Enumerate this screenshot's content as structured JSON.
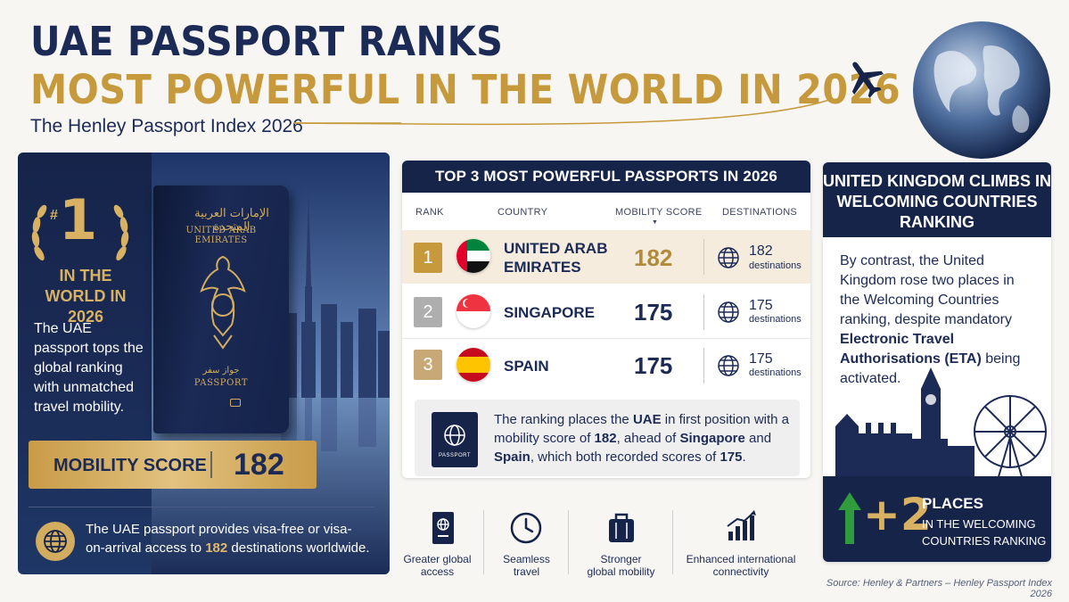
{
  "header": {
    "title_line1": "UAE PASSPORT RANKS",
    "title_line2": "MOST POWERFUL IN THE WORLD IN 2026",
    "subtitle": "The Henley Passport Index 2026"
  },
  "left": {
    "rank_hash": "#",
    "rank_number": "1",
    "rank_text": "IN THE WORLD IN 2026",
    "description": "The UAE passport tops the global ranking with unmatched travel mobility.",
    "passport_arabic": "الإمارات العربية المتحدة",
    "passport_country": "UNITED ARAB EMIRATES",
    "passport_arabic_word": "جواز سفر",
    "passport_word": "PASSPORT",
    "mobility_label": "MOBILITY SCORE",
    "mobility_value": "182",
    "bottom_before": "The UAE passport provides visa-free or visa-on-arrival access to ",
    "bottom_highlight": "182",
    "bottom_after": " destinations worldwide."
  },
  "table": {
    "title": "TOP 3 MOST POWERFUL PASSPORTS IN 2026",
    "col_rank": "RANK",
    "col_country": "COUNTRY",
    "col_score": "MOBILITY SCORE",
    "col_dest": "DESTINATIONS",
    "rows": [
      {
        "rank": "1",
        "country_l1": "UNITED ARAB",
        "country_l2": "EMIRATES",
        "score": "182",
        "dest": "182",
        "dest_label": "destinations"
      },
      {
        "rank": "2",
        "country_l1": "SINGAPORE",
        "country_l2": "",
        "score": "175",
        "dest": "175",
        "dest_label": "destinations"
      },
      {
        "rank": "3",
        "country_l1": "SPAIN",
        "country_l2": "",
        "score": "175",
        "dest": "175",
        "dest_label": "destinations"
      }
    ],
    "note": {
      "t1": "The ranking places the ",
      "b1": "UAE",
      "t2": " in first position with a mobility score of ",
      "b2": "182",
      "t3": ", ahead of ",
      "b3": "Singapore",
      "t4": " and ",
      "b4": "Spain",
      "t5": ", which both recorded scores of ",
      "b5": "175",
      "t6": "."
    },
    "mini_passport_label": "PASSPORT"
  },
  "features": [
    {
      "label_l1": "Greater global",
      "label_l2": "access",
      "icon": "passport-icon"
    },
    {
      "label_l1": "Seamless",
      "label_l2": "travel",
      "icon": "clock-icon"
    },
    {
      "label_l1": "Stronger",
      "label_l2": "global mobility",
      "icon": "luggage-icon"
    },
    {
      "label_l1": "Enhanced international",
      "label_l2": "connectivity",
      "icon": "bar-chart-icon"
    }
  ],
  "right": {
    "title": "UNITED KINGDOM CLIMBS IN WELCOMING COUNTRIES RANKING",
    "text_before": "By contrast, the United Kingdom rose two places in the Welcoming Countries ranking, despite mandatory ",
    "text_bold": "Electronic Travel Authorisations (ETA)",
    "text_after": " being activated.",
    "places_value": "+2",
    "places_title": "PLACES",
    "places_sub": "IN THE WELCOMING COUNTRIES RANKING"
  },
  "source": "Source: Henley & Partners – Henley Passport Index 2026",
  "colors": {
    "navy": "#16244a",
    "gold": "#c69a3c",
    "green_arrow": "#2e9b3c"
  }
}
